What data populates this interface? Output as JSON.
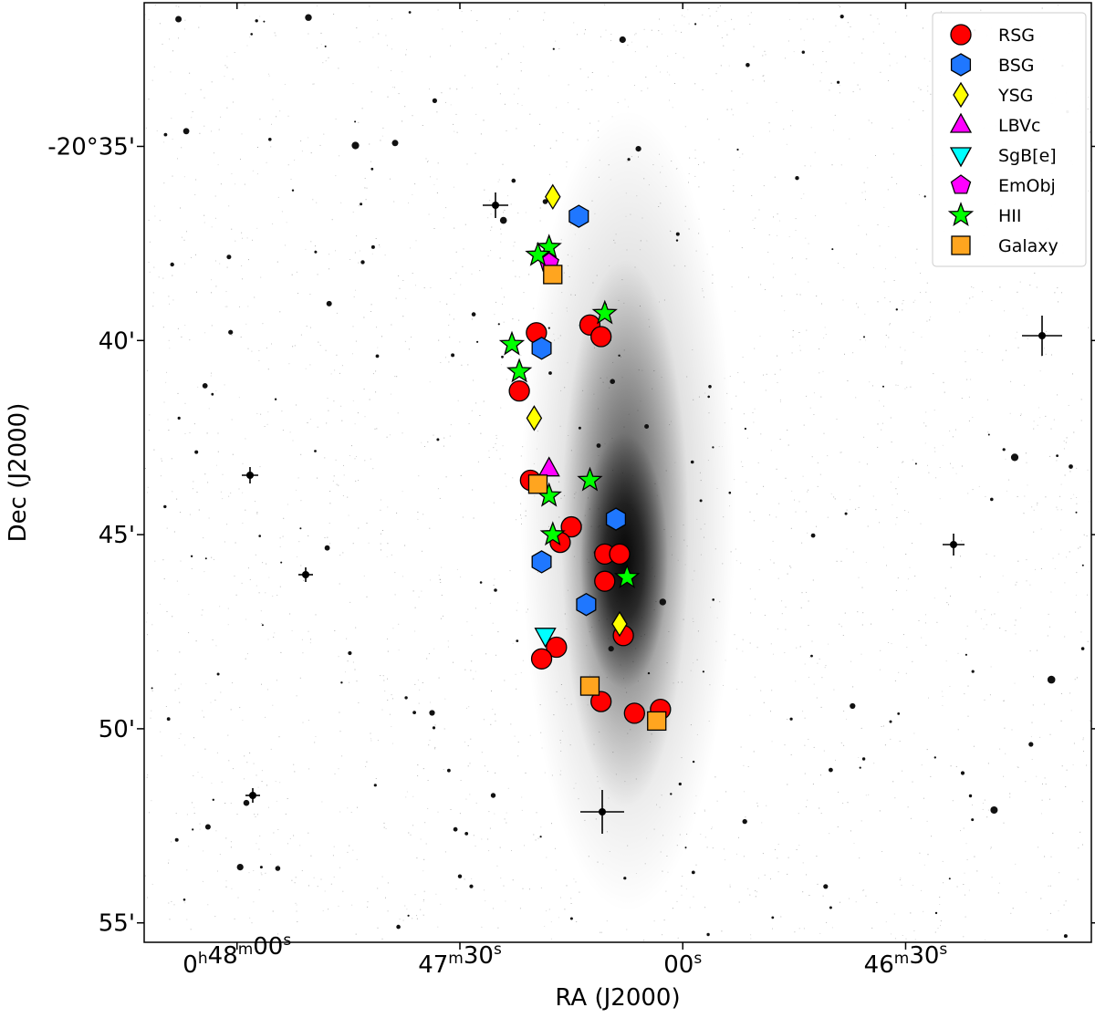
{
  "chart_data": {
    "type": "scatter",
    "background": "greyscale sky image of an edge-on spiral galaxy with field stars",
    "xlabel": "RA (J2000)",
    "ylabel": "Dec (J2000)",
    "x_ticks": [
      {
        "h": "0",
        "m": "48",
        "s": "00",
        "arcsec": 0
      },
      {
        "m": "47",
        "s": "30",
        "arcsec": 30
      },
      {
        "s": "00",
        "arcsec": 60
      },
      {
        "m": "46",
        "s": "30",
        "arcsec": 90
      }
    ],
    "y_ticks": [
      {
        "label": "-20°35'",
        "arcmin": 35
      },
      {
        "label": "40'",
        "arcmin": 40
      },
      {
        "label": "45'",
        "arcmin": 45
      },
      {
        "label": "50'",
        "arcmin": 50
      },
      {
        "label": "55'",
        "arcmin": 55
      }
    ],
    "x_range_arcsec_from_48m": [
      -12.5,
      115
    ],
    "y_range_arcmin": [
      55.5,
      31.3
    ],
    "legend_position": "top-right",
    "series": [
      {
        "name": "RSG",
        "marker": "circle",
        "color": "#ff0000",
        "points": [
          [
            47.5,
            39.6
          ],
          [
            49.0,
            39.9
          ],
          [
            40.3,
            39.8
          ],
          [
            38.0,
            41.3
          ],
          [
            39.5,
            43.6
          ],
          [
            45.0,
            44.8
          ],
          [
            43.5,
            45.2
          ],
          [
            49.5,
            45.5
          ],
          [
            51.5,
            45.5
          ],
          [
            49.5,
            46.2
          ],
          [
            52.0,
            47.6
          ],
          [
            43.0,
            47.9
          ],
          [
            41.0,
            48.2
          ],
          [
            49.0,
            49.3
          ],
          [
            53.5,
            49.6
          ],
          [
            57.0,
            49.5
          ]
        ]
      },
      {
        "name": "BSG",
        "marker": "hexagon",
        "color": "#1f77ff",
        "points": [
          [
            46.0,
            36.8
          ],
          [
            41.0,
            40.2
          ],
          [
            51.0,
            44.6
          ],
          [
            47.0,
            46.8
          ],
          [
            41.0,
            45.7
          ]
        ]
      },
      {
        "name": "YSG",
        "marker": "diamond",
        "color": "#ffff00",
        "points": [
          [
            42.5,
            36.3
          ],
          [
            40.0,
            42.0
          ],
          [
            51.5,
            47.3
          ]
        ]
      },
      {
        "name": "LBVc",
        "marker": "triangle-up",
        "color": "#ff00ff",
        "points": [
          [
            42.0,
            43.3
          ]
        ]
      },
      {
        "name": "SgB[e]",
        "marker": "triangle-down",
        "color": "#00ffff",
        "points": [
          [
            41.5,
            47.6
          ]
        ]
      },
      {
        "name": "EmObj",
        "marker": "pentagon",
        "color": "#ff00ff",
        "points": [
          [
            42.0,
            38.0
          ]
        ]
      },
      {
        "name": "HII",
        "marker": "star",
        "color": "#00ff00",
        "points": [
          [
            49.5,
            39.3
          ],
          [
            42.0,
            37.6
          ],
          [
            40.5,
            37.8
          ],
          [
            37.0,
            40.1
          ],
          [
            38.0,
            40.8
          ],
          [
            47.5,
            43.6
          ],
          [
            42.0,
            44.0
          ],
          [
            42.5,
            45.0
          ],
          [
            52.5,
            46.1
          ]
        ]
      },
      {
        "name": "Galaxy",
        "marker": "square",
        "color": "#ffa51f",
        "points": [
          [
            42.5,
            38.3
          ],
          [
            40.5,
            43.7
          ],
          [
            47.5,
            48.9
          ],
          [
            56.5,
            49.8
          ]
        ]
      }
    ]
  }
}
